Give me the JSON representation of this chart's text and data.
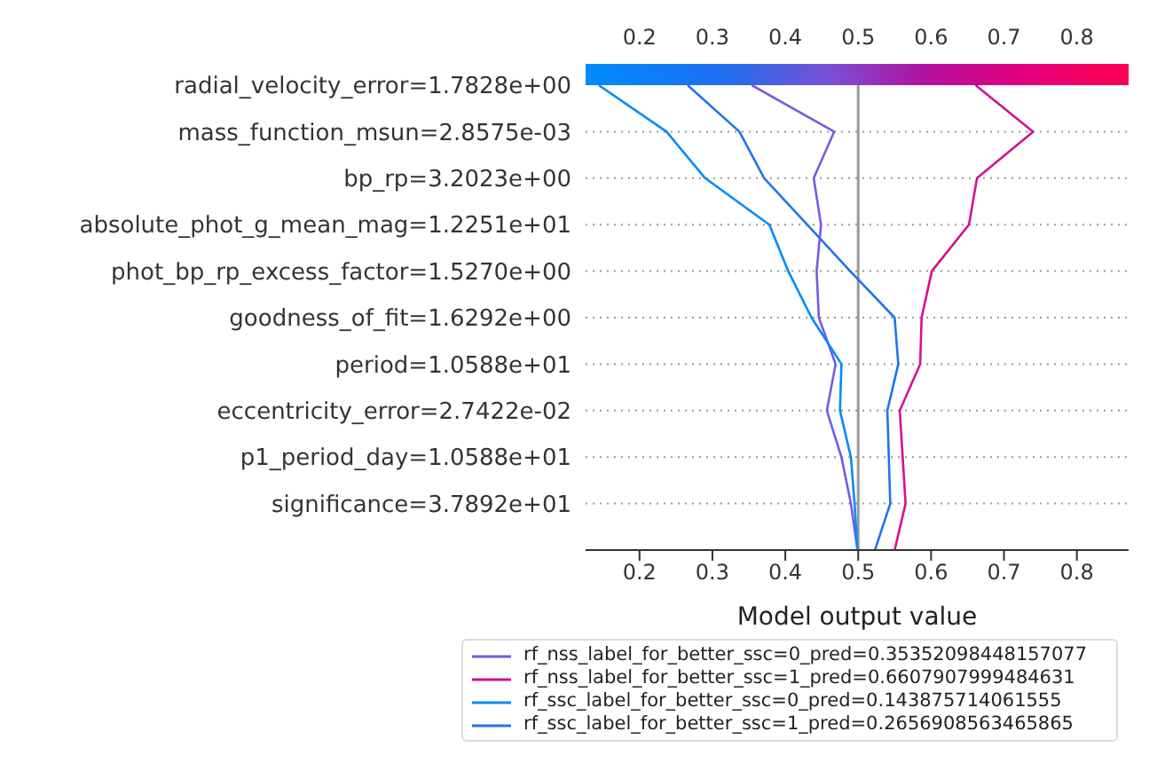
{
  "chart_data": {
    "type": "line",
    "orientation": "horizontal",
    "xlabel": "Model output value",
    "categories": [
      "radial_velocity_error=1.7828e+00",
      "mass_function_msun=2.8575e-03",
      "bp_rp=3.2023e+00",
      "absolute_phot_g_mean_mag=1.2251e+01",
      "phot_bp_rp_excess_factor=1.5270e+00",
      "goodness_of_fit=1.6292e+00",
      "period=1.0588e+01",
      "eccentricity_error=2.7422e-02",
      "p1_period_day=1.0588e+01",
      "significance=3.7892e+01",
      null
    ],
    "series": [
      {
        "name": "rf_nss_label_for_better_ssc=0_pred=0.35352098448157077",
        "color": "#7759e6",
        "values": [
          0.354,
          0.467,
          0.439,
          0.449,
          0.443,
          0.446,
          0.469,
          0.457,
          0.477,
          0.49,
          0.499
        ]
      },
      {
        "name": "rf_nss_label_for_better_ssc=1_pred=0.6607907999484631",
        "color": "#d6108f",
        "values": [
          0.661,
          0.74,
          0.663,
          0.652,
          0.601,
          0.587,
          0.585,
          0.557,
          0.561,
          0.565,
          0.55
        ]
      },
      {
        "name": "rf_ssc_label_for_better_ssc=0_pred=0.143875714061555",
        "color": "#008bfb",
        "values": [
          0.144,
          0.237,
          0.29,
          0.378,
          0.404,
          0.436,
          0.477,
          0.475,
          0.49,
          0.495,
          0.499
        ]
      },
      {
        "name": "rf_ssc_label_for_better_ssc=1_pred=0.2656908563465865",
        "color": "#1f74ee",
        "values": [
          0.266,
          0.337,
          0.371,
          0.43,
          0.489,
          0.55,
          0.555,
          0.54,
          0.542,
          0.544,
          0.523
        ]
      }
    ],
    "xlim": [
      0.126,
      0.871
    ],
    "xticks": [
      0.2,
      0.3,
      0.4,
      0.5,
      0.6,
      0.7,
      0.8
    ],
    "clim": [
      0.126,
      0.871
    ],
    "cticks": [
      0.2,
      0.3,
      0.4,
      0.5,
      0.6,
      0.7,
      0.8
    ],
    "ref_lines": [
      {
        "axis": "x",
        "value": 0.5,
        "color": "#999999"
      }
    ],
    "grid": "y",
    "legend": "bottom",
    "line_style": "solid",
    "marker": "none"
  }
}
